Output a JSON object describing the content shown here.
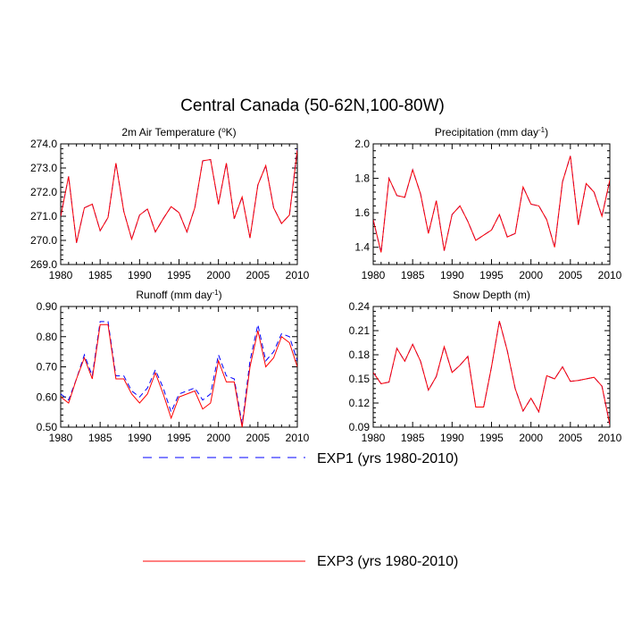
{
  "figure": {
    "title": "Central Canada (50-62N,100-80W)"
  },
  "legend": [
    {
      "label": "EXP1 (yrs 1980-2010)",
      "color": "#0000ff",
      "dash": true
    },
    {
      "label": "EXP3 (yrs 1980-2010)",
      "color": "#ff0000",
      "dash": false
    }
  ],
  "chart_data": [
    {
      "type": "line",
      "title": "2m Air Temperature (°K)",
      "title_parts": [
        "2m Air Temperature (",
        "o",
        "K)"
      ],
      "xlim": [
        1980,
        2010
      ],
      "ylim": [
        269.0,
        274.0
      ],
      "xticks": [
        "1980",
        "1985",
        "1990",
        "1995",
        "2000",
        "2005",
        "2010"
      ],
      "yticks": [
        "269.0",
        "270.0",
        "271.0",
        "272.0",
        "273.0",
        "274.0"
      ],
      "x": [
        1980,
        1981,
        1982,
        1983,
        1984,
        1985,
        1986,
        1987,
        1988,
        1989,
        1990,
        1991,
        1992,
        1993,
        1994,
        1995,
        1996,
        1997,
        1998,
        1999,
        2000,
        2001,
        2002,
        2003,
        2004,
        2005,
        2006,
        2007,
        2008,
        2009,
        2010
      ],
      "series": [
        {
          "name": "EXP1 (yrs 1980-2010)",
          "values": [
            271.0,
            272.65,
            269.9,
            271.35,
            271.5,
            270.4,
            270.95,
            273.2,
            271.2,
            270.05,
            271.05,
            271.3,
            270.35,
            270.9,
            271.4,
            271.15,
            270.35,
            271.35,
            273.3,
            273.35,
            271.5,
            273.2,
            270.9,
            271.8,
            270.1,
            272.3,
            273.1,
            271.35,
            270.7,
            271.05,
            273.8
          ]
        },
        {
          "name": "EXP3 (yrs 1980-2010)",
          "values": [
            271.0,
            272.65,
            269.9,
            271.35,
            271.5,
            270.4,
            270.95,
            273.2,
            271.2,
            270.05,
            271.05,
            271.3,
            270.35,
            270.9,
            271.4,
            271.15,
            270.35,
            271.35,
            273.3,
            273.35,
            271.5,
            273.2,
            270.9,
            271.8,
            270.1,
            272.3,
            273.1,
            271.35,
            270.7,
            271.05,
            273.75
          ]
        }
      ]
    },
    {
      "type": "line",
      "title": "Precipitation (mm day-1)",
      "title_parts": [
        "Precipitation (mm day",
        "-1",
        ")"
      ],
      "xlim": [
        1980,
        2010
      ],
      "ylim": [
        1.3,
        2.0
      ],
      "xticks": [
        "1980",
        "1985",
        "1990",
        "1995",
        "2000",
        "2005",
        "2010"
      ],
      "yticks": [
        "1.4",
        "1.6",
        "1.8",
        "2.0"
      ],
      "x": [
        1980,
        1981,
        1982,
        1983,
        1984,
        1985,
        1986,
        1987,
        1988,
        1989,
        1990,
        1991,
        1992,
        1993,
        1994,
        1995,
        1996,
        1997,
        1998,
        1999,
        2000,
        2001,
        2002,
        2003,
        2004,
        2005,
        2006,
        2007,
        2008,
        2009,
        2010
      ],
      "series": [
        {
          "name": "EXP1 (yrs 1980-2010)",
          "values": [
            1.56,
            1.37,
            1.8,
            1.7,
            1.69,
            1.85,
            1.71,
            1.48,
            1.67,
            1.38,
            1.59,
            1.64,
            1.55,
            1.44,
            1.47,
            1.5,
            1.59,
            1.46,
            1.48,
            1.75,
            1.65,
            1.64,
            1.56,
            1.4,
            1.78,
            1.93,
            1.53,
            1.77,
            1.72,
            1.58,
            1.79
          ]
        },
        {
          "name": "EXP3 (yrs 1980-2010)",
          "values": [
            1.56,
            1.37,
            1.8,
            1.7,
            1.69,
            1.85,
            1.71,
            1.48,
            1.67,
            1.38,
            1.59,
            1.64,
            1.55,
            1.44,
            1.47,
            1.5,
            1.59,
            1.46,
            1.48,
            1.75,
            1.65,
            1.64,
            1.56,
            1.4,
            1.78,
            1.93,
            1.53,
            1.77,
            1.72,
            1.58,
            1.79
          ]
        }
      ]
    },
    {
      "type": "line",
      "title": "Runoff (mm day-1)",
      "title_parts": [
        "Runoff (mm day",
        "-1",
        ")"
      ],
      "xlim": [
        1980,
        2010
      ],
      "ylim": [
        0.5,
        0.9
      ],
      "xticks": [
        "1980",
        "1985",
        "1990",
        "1995",
        "2000",
        "2005",
        "2010"
      ],
      "yticks": [
        "0.50",
        "0.60",
        "0.70",
        "0.80",
        "0.90"
      ],
      "x": [
        1980,
        1981,
        1982,
        1983,
        1984,
        1985,
        1986,
        1987,
        1988,
        1989,
        1990,
        1991,
        1992,
        1993,
        1994,
        1995,
        1996,
        1997,
        1998,
        1999,
        2000,
        2001,
        2002,
        2003,
        2004,
        2005,
        2006,
        2007,
        2008,
        2009,
        2010
      ],
      "series": [
        {
          "name": "EXP1 (yrs 1980-2010)",
          "values": [
            0.61,
            0.59,
            0.66,
            0.74,
            0.67,
            0.85,
            0.85,
            0.67,
            0.67,
            0.62,
            0.6,
            0.63,
            0.69,
            0.63,
            0.55,
            0.61,
            0.62,
            0.63,
            0.59,
            0.61,
            0.74,
            0.67,
            0.66,
            0.51,
            0.72,
            0.84,
            0.72,
            0.75,
            0.81,
            0.8,
            0.72
          ]
        },
        {
          "name": "EXP3 (yrs 1980-2010)",
          "values": [
            0.6,
            0.58,
            0.66,
            0.73,
            0.66,
            0.84,
            0.84,
            0.66,
            0.66,
            0.61,
            0.58,
            0.61,
            0.68,
            0.61,
            0.53,
            0.6,
            0.61,
            0.62,
            0.56,
            0.58,
            0.72,
            0.65,
            0.65,
            0.5,
            0.7,
            0.82,
            0.7,
            0.73,
            0.8,
            0.78,
            0.7
          ]
        }
      ]
    },
    {
      "type": "line",
      "title": "Snow Depth (m)",
      "title_parts": [
        "Snow Depth (m)",
        "",
        ""
      ],
      "xlim": [
        1980,
        2010
      ],
      "ylim": [
        0.09,
        0.24
      ],
      "xticks": [
        "1980",
        "1985",
        "1990",
        "1995",
        "2000",
        "2005",
        "2010"
      ],
      "yticks": [
        "0.09",
        "0.12",
        "0.15",
        "0.18",
        "0.21",
        "0.24"
      ],
      "x": [
        1980,
        1981,
        1982,
        1983,
        1984,
        1985,
        1986,
        1987,
        1988,
        1989,
        1990,
        1991,
        1992,
        1993,
        1994,
        1995,
        1996,
        1997,
        1998,
        1999,
        2000,
        2001,
        2002,
        2003,
        2004,
        2005,
        2006,
        2007,
        2008,
        2009,
        2010
      ],
      "series": [
        {
          "name": "EXP1 (yrs 1980-2010)",
          "values": [
            0.158,
            0.144,
            0.146,
            0.188,
            0.172,
            0.193,
            0.172,
            0.136,
            0.153,
            0.19,
            0.158,
            0.167,
            0.178,
            0.115,
            0.115,
            0.165,
            0.222,
            0.185,
            0.138,
            0.11,
            0.126,
            0.109,
            0.154,
            0.15,
            0.165,
            0.147,
            0.148,
            0.15,
            0.152,
            0.141,
            0.093
          ]
        },
        {
          "name": "EXP3 (yrs 1980-2010)",
          "values": [
            0.158,
            0.144,
            0.146,
            0.188,
            0.172,
            0.193,
            0.172,
            0.136,
            0.153,
            0.19,
            0.158,
            0.167,
            0.178,
            0.115,
            0.115,
            0.165,
            0.222,
            0.185,
            0.138,
            0.11,
            0.126,
            0.109,
            0.154,
            0.15,
            0.165,
            0.147,
            0.148,
            0.15,
            0.152,
            0.141,
            0.093
          ]
        }
      ]
    }
  ]
}
